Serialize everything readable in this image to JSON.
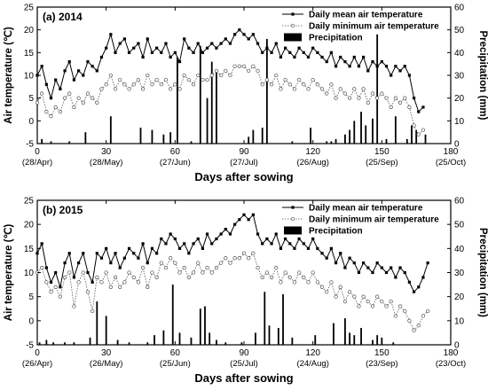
{
  "chart_data": [
    {
      "type": "line",
      "panel_label": "(a)  2014",
      "xlabel": "Days after sowing",
      "ylabel": "Air temperature (℃)",
      "y2label": "Precipitation (mm)",
      "xlim": [
        0,
        180
      ],
      "ylim": [
        -5,
        25
      ],
      "y2lim": [
        0,
        60
      ],
      "xticks": [
        0,
        30,
        60,
        90,
        120,
        150,
        180
      ],
      "date_ticks": [
        "(28/Apr)",
        "(28/May)",
        "(27/Jun)",
        "(27/Jul)",
        "(26/Aug)",
        "(25/Sep)",
        "(25/Oct)"
      ],
      "yticks": [
        -5,
        0,
        5,
        10,
        15,
        20,
        25
      ],
      "y2ticks": [
        0,
        10,
        20,
        30,
        40,
        50,
        60
      ],
      "legend": [
        "Daily mean air temperature",
        "Daily minimum air temperature",
        "Precipitation"
      ],
      "legend_position": "top-right",
      "series": [
        {
          "name": "Daily mean air temperature",
          "marker": "filled-square",
          "line": "solid",
          "x": [
            0,
            2,
            4,
            6,
            8,
            10,
            12,
            14,
            16,
            18,
            20,
            22,
            24,
            26,
            28,
            30,
            32,
            34,
            36,
            38,
            40,
            42,
            44,
            46,
            48,
            50,
            52,
            54,
            56,
            58,
            60,
            62,
            64,
            66,
            68,
            70,
            72,
            74,
            76,
            78,
            80,
            82,
            84,
            86,
            88,
            90,
            92,
            94,
            96,
            98,
            100,
            102,
            104,
            106,
            108,
            110,
            112,
            114,
            116,
            118,
            120,
            122,
            124,
            126,
            128,
            130,
            132,
            134,
            136,
            138,
            140,
            142,
            144,
            146,
            148,
            150,
            152,
            154,
            156,
            158,
            160,
            162,
            164,
            166,
            168
          ],
          "y": [
            10,
            12,
            8,
            5,
            9,
            7,
            11,
            13,
            9,
            11,
            10,
            13,
            12,
            11,
            14,
            16,
            19,
            15,
            17,
            18,
            15,
            16,
            17,
            14,
            18,
            15,
            16,
            15,
            17,
            14,
            15,
            13,
            18,
            16,
            15,
            17,
            15,
            16,
            17,
            16,
            17,
            18,
            17,
            19,
            20,
            19,
            18,
            19,
            17,
            15,
            16,
            15,
            17,
            14,
            16,
            15,
            14,
            16,
            15,
            14,
            16,
            15,
            14,
            13,
            15,
            12,
            14,
            13,
            12,
            14,
            12,
            14,
            11,
            13,
            12,
            13,
            12,
            10,
            12,
            11,
            12,
            10,
            5,
            2,
            3
          ]
        },
        {
          "name": "Daily minimum air temperature",
          "marker": "open-circle",
          "line": "dotted",
          "x": [
            0,
            2,
            4,
            6,
            8,
            10,
            12,
            14,
            16,
            18,
            20,
            22,
            24,
            26,
            28,
            30,
            32,
            34,
            36,
            38,
            40,
            42,
            44,
            46,
            48,
            50,
            52,
            54,
            56,
            58,
            60,
            62,
            64,
            66,
            68,
            70,
            72,
            74,
            76,
            78,
            80,
            82,
            84,
            86,
            88,
            90,
            92,
            94,
            96,
            98,
            100,
            102,
            104,
            106,
            108,
            110,
            112,
            114,
            116,
            118,
            120,
            122,
            124,
            126,
            128,
            130,
            132,
            134,
            136,
            138,
            140,
            142,
            144,
            146,
            148,
            150,
            152,
            154,
            156,
            158,
            160,
            162,
            164,
            166,
            168
          ],
          "y": [
            4,
            6,
            2,
            1,
            3,
            2,
            5,
            6,
            3,
            5,
            4,
            6,
            5,
            4,
            7,
            8,
            10,
            7,
            9,
            8,
            7,
            8,
            9,
            7,
            10,
            8,
            9,
            8,
            9,
            7,
            8,
            7,
            10,
            9,
            8,
            10,
            9,
            9,
            10,
            11,
            10,
            11,
            10,
            12,
            12,
            12,
            11,
            12,
            11,
            8,
            9,
            8,
            10,
            7,
            9,
            8,
            7,
            9,
            8,
            7,
            9,
            8,
            7,
            6,
            8,
            5,
            7,
            6,
            5,
            7,
            5,
            7,
            4,
            6,
            5,
            6,
            5,
            3,
            5,
            4,
            5,
            3,
            -1,
            -3,
            -2
          ]
        },
        {
          "name": "Precipitation",
          "type": "bar",
          "axis": "secondary",
          "x": [
            2,
            6,
            14,
            21,
            32,
            45,
            50,
            55,
            58,
            61,
            67,
            71,
            74,
            76,
            78,
            92,
            94,
            98,
            100,
            111,
            119,
            126,
            128,
            130,
            134,
            136,
            138,
            141,
            143,
            146,
            148,
            152,
            156,
            161,
            163,
            165,
            169
          ],
          "y": [
            2,
            1,
            1,
            5,
            12,
            7,
            6,
            4,
            5,
            38,
            1,
            43,
            20,
            36,
            32,
            3,
            6,
            7,
            46,
            1,
            7,
            1,
            1,
            2,
            4,
            6,
            10,
            14,
            8,
            11,
            48,
            2,
            12,
            2,
            8,
            6,
            4
          ]
        }
      ]
    },
    {
      "type": "line",
      "panel_label": "(b)  2015",
      "xlabel": "Days after sowing",
      "ylabel": "Air temperature (℃)",
      "y2label": "Precipitation (mm)",
      "xlim": [
        0,
        180
      ],
      "ylim": [
        -5,
        25
      ],
      "y2lim": [
        0,
        60
      ],
      "xticks": [
        0,
        30,
        60,
        90,
        120,
        150,
        180
      ],
      "date_ticks": [
        "(26/Apr)",
        "(26/May)",
        "(25/Jun)",
        "(25/Jul)",
        "(24/Aug)",
        "(23/Sep)",
        "(23/Oct)"
      ],
      "yticks": [
        -5,
        0,
        5,
        10,
        15,
        20,
        25
      ],
      "y2ticks": [
        0,
        10,
        20,
        30,
        40,
        50,
        60
      ],
      "legend": [
        "Daily mean air temperature",
        "Daily minimum air temperature",
        "Precipitation"
      ],
      "legend_position": "top-right",
      "series": [
        {
          "name": "Daily mean air temperature",
          "marker": "filled-square",
          "line": "solid",
          "x": [
            0,
            2,
            4,
            6,
            8,
            10,
            12,
            14,
            16,
            18,
            20,
            22,
            24,
            26,
            28,
            30,
            32,
            34,
            36,
            38,
            40,
            42,
            44,
            46,
            48,
            50,
            52,
            54,
            56,
            58,
            60,
            62,
            64,
            66,
            68,
            70,
            72,
            74,
            76,
            78,
            80,
            82,
            84,
            86,
            88,
            90,
            92,
            94,
            96,
            98,
            100,
            102,
            104,
            106,
            108,
            110,
            112,
            114,
            116,
            118,
            120,
            122,
            124,
            126,
            128,
            130,
            132,
            134,
            136,
            138,
            140,
            142,
            144,
            146,
            148,
            150,
            152,
            154,
            156,
            158,
            160,
            162,
            164,
            166,
            168,
            170
          ],
          "y": [
            14,
            16,
            11,
            8,
            10,
            7,
            12,
            14,
            9,
            12,
            14,
            10,
            8,
            14,
            13,
            15,
            12,
            14,
            11,
            13,
            15,
            14,
            13,
            16,
            12,
            15,
            14,
            17,
            16,
            18,
            17,
            15,
            16,
            14,
            16,
            17,
            15,
            18,
            16,
            17,
            18,
            19,
            18,
            20,
            21,
            22,
            21,
            22,
            18,
            16,
            17,
            16,
            18,
            15,
            17,
            16,
            15,
            17,
            16,
            15,
            17,
            15,
            14,
            13,
            15,
            12,
            14,
            11,
            13,
            12,
            10,
            12,
            11,
            10,
            12,
            11,
            10,
            11,
            9,
            11,
            10,
            8,
            6,
            7,
            9,
            12
          ]
        },
        {
          "name": "Daily minimum air temperature",
          "marker": "open-circle",
          "line": "dotted",
          "x": [
            0,
            2,
            4,
            6,
            8,
            10,
            12,
            14,
            16,
            18,
            20,
            22,
            24,
            26,
            28,
            30,
            32,
            34,
            36,
            38,
            40,
            42,
            44,
            46,
            48,
            50,
            52,
            54,
            56,
            58,
            60,
            62,
            64,
            66,
            68,
            70,
            72,
            74,
            76,
            78,
            80,
            82,
            84,
            86,
            88,
            90,
            92,
            94,
            96,
            98,
            100,
            102,
            104,
            106,
            108,
            110,
            112,
            114,
            116,
            118,
            120,
            122,
            124,
            126,
            128,
            130,
            132,
            134,
            136,
            138,
            140,
            142,
            144,
            146,
            148,
            150,
            152,
            154,
            156,
            158,
            160,
            162,
            164,
            166,
            168,
            170
          ],
          "y": [
            10,
            11,
            8,
            6,
            7,
            5,
            9,
            10,
            3,
            8,
            10,
            6,
            2,
            9,
            8,
            10,
            7,
            9,
            7,
            8,
            10,
            9,
            8,
            11,
            7,
            10,
            9,
            12,
            11,
            13,
            12,
            10,
            11,
            9,
            10,
            12,
            10,
            11,
            10,
            11,
            12,
            13,
            12,
            13,
            13,
            14,
            13,
            14,
            11,
            9,
            10,
            9,
            11,
            8,
            10,
            9,
            8,
            10,
            9,
            8,
            10,
            8,
            7,
            6,
            8,
            5,
            7,
            4,
            6,
            5,
            3,
            5,
            4,
            3,
            5,
            4,
            3,
            4,
            1,
            3,
            2,
            0,
            -2,
            -1,
            1,
            2
          ]
        },
        {
          "name": "Precipitation",
          "type": "bar",
          "axis": "secondary",
          "x": [
            1,
            4,
            7,
            12,
            16,
            23,
            26,
            30,
            35,
            40,
            48,
            51,
            55,
            59,
            62,
            67,
            71,
            73,
            75,
            78,
            82,
            89,
            95,
            99,
            101,
            105,
            107,
            111,
            121,
            129,
            134,
            136,
            138,
            141,
            146,
            148,
            150,
            155
          ],
          "y": [
            1,
            2,
            1,
            1,
            1,
            3,
            18,
            12,
            2,
            1,
            1,
            4,
            6,
            25,
            5,
            3,
            15,
            16,
            5,
            2,
            1,
            1,
            5,
            22,
            8,
            7,
            21,
            3,
            4,
            9,
            11,
            5,
            4,
            7,
            2,
            4,
            3,
            1
          ]
        }
      ]
    }
  ]
}
